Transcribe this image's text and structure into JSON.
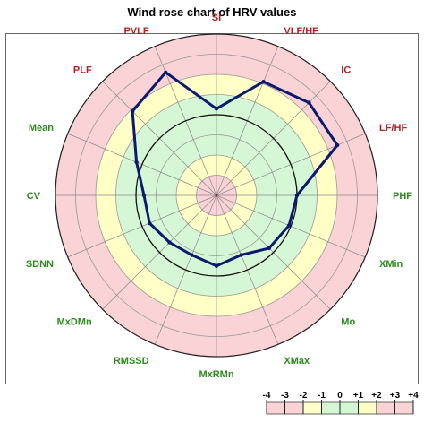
{
  "chart_data": {
    "type": "radar",
    "title": "Wind rose chart of HRV values",
    "categories": [
      "SI",
      "VLF/HF",
      "IC",
      "LF/HF",
      "PHF",
      "XMin",
      "Mo",
      "XMax",
      "MxRMn",
      "RMSSD",
      "MxDMn",
      "SDNN",
      "CV",
      "Mean",
      "PLF",
      "PVLF"
    ],
    "category_colors": [
      "#b22222",
      "#b22222",
      "#b22222",
      "#b22222",
      "#2e8b1e",
      "#2e8b1e",
      "#2e8b1e",
      "#2e8b1e",
      "#2e8b1e",
      "#2e8b1e",
      "#2e8b1e",
      "#2e8b1e",
      "#2e8b1e",
      "#2e8b1e",
      "#b22222",
      "#b22222"
    ],
    "scale": {
      "min": -4,
      "max": 4,
      "ticks": [
        "-4",
        "-3",
        "-2",
        "-1",
        "0",
        "+1",
        "+2",
        "+3",
        "+4"
      ]
    },
    "zone_colors": {
      "pink": "#f9d3d6",
      "yellow": "#ffffc6",
      "green": "#d6f7d6"
    },
    "series": [
      {
        "values": [
          0.3,
          2.1,
          2.5,
          2.5,
          0.0,
          -0.1,
          -0.3,
          -0.8,
          -0.5,
          -0.8,
          -0.7,
          -0.4,
          -0.4,
          0.3,
          1.9,
          2.6
        ]
      }
    ],
    "series_color": "#0b1a6e"
  }
}
